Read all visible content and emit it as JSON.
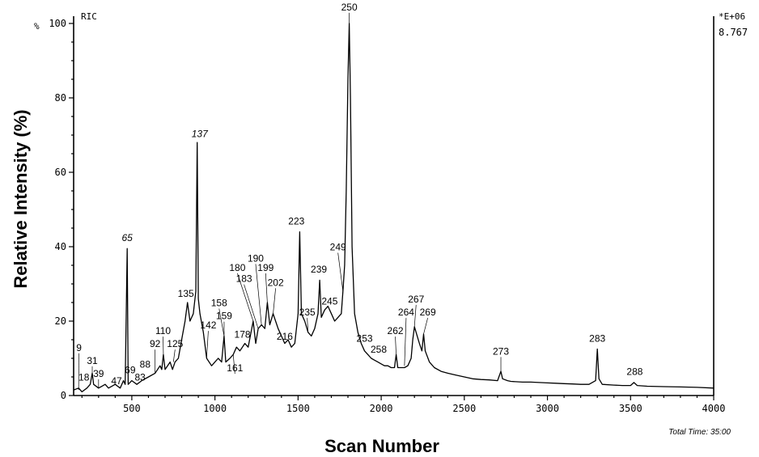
{
  "chart_data": {
    "type": "line",
    "title": "",
    "trace_label": "RIC",
    "xlabel": "Scan Number",
    "ylabel": "Relative Intensity (%)",
    "y_unit_marker": "%",
    "scale_exponent": "*E+06",
    "scale_value": "8.767",
    "total_time_label": "Total Time: 35:00",
    "xlim": [
      150,
      4000
    ],
    "ylim": [
      0,
      100
    ],
    "x_ticks": [
      500,
      1000,
      1500,
      2000,
      2500,
      3000,
      3500,
      4000
    ],
    "y_ticks": [
      0,
      20,
      40,
      60,
      80,
      100
    ],
    "grid": false,
    "series": [
      {
        "values_description": "scan_number vs relative_intensity",
        "points": [
          [
            150,
            1.5
          ],
          [
            180,
            2
          ],
          [
            200,
            1
          ],
          [
            230,
            2
          ],
          [
            250,
            3
          ],
          [
            262,
            6
          ],
          [
            270,
            3
          ],
          [
            300,
            2
          ],
          [
            340,
            3
          ],
          [
            360,
            2
          ],
          [
            400,
            3
          ],
          [
            430,
            2
          ],
          [
            450,
            4
          ],
          [
            460,
            3
          ],
          [
            472,
            39.5
          ],
          [
            478,
            3
          ],
          [
            500,
            4
          ],
          [
            530,
            3
          ],
          [
            560,
            4
          ],
          [
            600,
            5
          ],
          [
            640,
            6
          ],
          [
            670,
            8
          ],
          [
            680,
            7
          ],
          [
            690,
            11
          ],
          [
            700,
            7
          ],
          [
            715,
            8
          ],
          [
            730,
            9
          ],
          [
            745,
            7
          ],
          [
            760,
            9
          ],
          [
            780,
            10
          ],
          [
            800,
            15
          ],
          [
            820,
            20
          ],
          [
            835,
            25
          ],
          [
            850,
            20
          ],
          [
            870,
            22
          ],
          [
            885,
            28
          ],
          [
            893,
            68
          ],
          [
            900,
            26
          ],
          [
            910,
            22
          ],
          [
            930,
            17
          ],
          [
            950,
            10
          ],
          [
            980,
            8
          ],
          [
            1000,
            9
          ],
          [
            1020,
            10
          ],
          [
            1040,
            9
          ],
          [
            1055,
            16
          ],
          [
            1065,
            9
          ],
          [
            1090,
            10
          ],
          [
            1110,
            11
          ],
          [
            1130,
            13
          ],
          [
            1150,
            12
          ],
          [
            1180,
            14
          ],
          [
            1200,
            13
          ],
          [
            1230,
            20
          ],
          [
            1245,
            14
          ],
          [
            1260,
            18
          ],
          [
            1280,
            19
          ],
          [
            1300,
            18
          ],
          [
            1315,
            25
          ],
          [
            1330,
            19
          ],
          [
            1350,
            22
          ],
          [
            1365,
            20
          ],
          [
            1380,
            18
          ],
          [
            1400,
            16
          ],
          [
            1420,
            14
          ],
          [
            1440,
            15
          ],
          [
            1460,
            13
          ],
          [
            1480,
            14
          ],
          [
            1500,
            22
          ],
          [
            1510,
            44
          ],
          [
            1520,
            22
          ],
          [
            1540,
            20
          ],
          [
            1560,
            17
          ],
          [
            1580,
            16
          ],
          [
            1600,
            18
          ],
          [
            1620,
            22
          ],
          [
            1630,
            31
          ],
          [
            1640,
            21
          ],
          [
            1660,
            23
          ],
          [
            1680,
            24
          ],
          [
            1700,
            22
          ],
          [
            1720,
            20
          ],
          [
            1740,
            21
          ],
          [
            1760,
            22
          ],
          [
            1770,
            28
          ],
          [
            1780,
            35
          ],
          [
            1790,
            55
          ],
          [
            1800,
            85
          ],
          [
            1808,
            100
          ],
          [
            1815,
            80
          ],
          [
            1825,
            40
          ],
          [
            1840,
            22
          ],
          [
            1860,
            17
          ],
          [
            1880,
            14
          ],
          [
            1900,
            12
          ],
          [
            1920,
            11
          ],
          [
            1940,
            10
          ],
          [
            1960,
            9.5
          ],
          [
            1980,
            9
          ],
          [
            2000,
            8.5
          ],
          [
            2020,
            8
          ],
          [
            2040,
            8
          ],
          [
            2060,
            7.5
          ],
          [
            2080,
            7.5
          ],
          [
            2090,
            11
          ],
          [
            2100,
            7.5
          ],
          [
            2120,
            7.5
          ],
          [
            2140,
            7.5
          ],
          [
            2160,
            8
          ],
          [
            2180,
            10
          ],
          [
            2190,
            15
          ],
          [
            2200,
            18.5
          ],
          [
            2210,
            17
          ],
          [
            2230,
            14
          ],
          [
            2245,
            12
          ],
          [
            2255,
            16.5
          ],
          [
            2265,
            12
          ],
          [
            2290,
            9
          ],
          [
            2320,
            7.5
          ],
          [
            2360,
            6.5
          ],
          [
            2400,
            6
          ],
          [
            2450,
            5.5
          ],
          [
            2500,
            5
          ],
          [
            2550,
            4.5
          ],
          [
            2600,
            4.3
          ],
          [
            2650,
            4.2
          ],
          [
            2700,
            4
          ],
          [
            2720,
            6.5
          ],
          [
            2730,
            4.5
          ],
          [
            2760,
            4
          ],
          [
            2780,
            3.8
          ],
          [
            2850,
            3.6
          ],
          [
            2900,
            3.6
          ],
          [
            2950,
            3.5
          ],
          [
            3000,
            3.4
          ],
          [
            3050,
            3.3
          ],
          [
            3100,
            3.2
          ],
          [
            3150,
            3.1
          ],
          [
            3200,
            3
          ],
          [
            3250,
            3
          ],
          [
            3290,
            4
          ],
          [
            3300,
            12.5
          ],
          [
            3310,
            4.5
          ],
          [
            3330,
            3
          ],
          [
            3400,
            2.8
          ],
          [
            3450,
            2.7
          ],
          [
            3500,
            2.7
          ],
          [
            3520,
            3.5
          ],
          [
            3540,
            2.7
          ],
          [
            3600,
            2.5
          ],
          [
            3700,
            2.4
          ],
          [
            3800,
            2.3
          ],
          [
            3900,
            2.2
          ],
          [
            4000,
            2
          ]
        ]
      }
    ],
    "peak_labels": [
      {
        "text": "9",
        "x": 180,
        "y": 1.5,
        "tx": 182,
        "ty": 12
      },
      {
        "text": "18",
        "x": 225,
        "y": 2,
        "tx": 212,
        "ty": 4
      },
      {
        "text": "31",
        "x": 262,
        "y": 5,
        "tx": 262,
        "ty": 8.5
      },
      {
        "text": "39",
        "x": 300,
        "y": 2,
        "tx": 300,
        "ty": 5
      },
      {
        "text": "47",
        "x": 420,
        "y": 3,
        "tx": 408,
        "ty": 3
      },
      {
        "text": "65",
        "x": 472,
        "y": 39.5,
        "tx": 472,
        "ty": 41.5
      },
      {
        "text": "69",
        "x": 480,
        "y": 4,
        "tx": 490,
        "ty": 6
      },
      {
        "text": "83",
        "x": 560,
        "y": 4,
        "tx": 550,
        "ty": 4
      },
      {
        "text": "88",
        "x": 590,
        "y": 5,
        "tx": 580,
        "ty": 7.5
      },
      {
        "text": "92",
        "x": 640,
        "y": 6,
        "tx": 640,
        "ty": 13
      },
      {
        "text": "110",
        "x": 690,
        "y": 11,
        "tx": 688,
        "ty": 16.5
      },
      {
        "text": "125",
        "x": 750,
        "y": 9,
        "tx": 760,
        "ty": 13
      },
      {
        "text": "135",
        "x": 835,
        "y": 25,
        "tx": 825,
        "ty": 26.5
      },
      {
        "text": "137",
        "x": 893,
        "y": 68,
        "tx": 908,
        "ty": 69.5
      },
      {
        "text": "142",
        "x": 950,
        "y": 10,
        "tx": 960,
        "ty": 18
      },
      {
        "text": "158",
        "x": 1055,
        "y": 16,
        "tx": 1025,
        "ty": 24
      },
      {
        "text": "159",
        "x": 1055,
        "y": 16,
        "tx": 1055,
        "ty": 20.5
      },
      {
        "text": "161",
        "x": 1110,
        "y": 11,
        "tx": 1120,
        "ty": 6.5
      },
      {
        "text": "178",
        "x": 1180,
        "y": 14,
        "tx": 1165,
        "ty": 15.5
      },
      {
        "text": "180",
        "x": 1230,
        "y": 20,
        "tx": 1135,
        "ty": 33.5
      },
      {
        "text": "183",
        "x": 1260,
        "y": 18,
        "tx": 1175,
        "ty": 30.5
      },
      {
        "text": "190",
        "x": 1280,
        "y": 19,
        "tx": 1245,
        "ty": 36
      },
      {
        "text": "199",
        "x": 1315,
        "y": 25,
        "tx": 1305,
        "ty": 33.5
      },
      {
        "text": "202",
        "x": 1350,
        "y": 22,
        "tx": 1365,
        "ty": 29.5
      },
      {
        "text": "216",
        "x": 1420,
        "y": 14,
        "tx": 1420,
        "ty": 15
      },
      {
        "text": "223",
        "x": 1510,
        "y": 44,
        "tx": 1490,
        "ty": 46
      },
      {
        "text": "235",
        "x": 1560,
        "y": 17,
        "tx": 1555,
        "ty": 21.5
      },
      {
        "text": "239",
        "x": 1630,
        "y": 31,
        "tx": 1625,
        "ty": 33
      },
      {
        "text": "245",
        "x": 1680,
        "y": 24,
        "tx": 1690,
        "ty": 24.5
      },
      {
        "text": "249",
        "x": 1770,
        "y": 28,
        "tx": 1740,
        "ty": 39
      },
      {
        "text": "250",
        "x": 1808,
        "y": 100,
        "tx": 1808,
        "ty": 103.5
      },
      {
        "text": "253",
        "x": 1880,
        "y": 14,
        "tx": 1900,
        "ty": 14.5
      },
      {
        "text": "258",
        "x": 1960,
        "y": 10,
        "tx": 1985,
        "ty": 11.5
      },
      {
        "text": "262",
        "x": 2090,
        "y": 11,
        "tx": 2085,
        "ty": 16.5
      },
      {
        "text": "264",
        "x": 2140,
        "y": 8,
        "tx": 2150,
        "ty": 21.5
      },
      {
        "text": "267",
        "x": 2200,
        "y": 18.5,
        "tx": 2210,
        "ty": 25
      },
      {
        "text": "269",
        "x": 2255,
        "y": 16.5,
        "tx": 2280,
        "ty": 21.5
      },
      {
        "text": "273",
        "x": 2720,
        "y": 6.5,
        "tx": 2720,
        "ty": 11
      },
      {
        "text": "283",
        "x": 3300,
        "y": 12.5,
        "tx": 3300,
        "ty": 14.5
      },
      {
        "text": "288",
        "x": 3520,
        "y": 3.5,
        "tx": 3525,
        "ty": 5.5
      }
    ]
  }
}
